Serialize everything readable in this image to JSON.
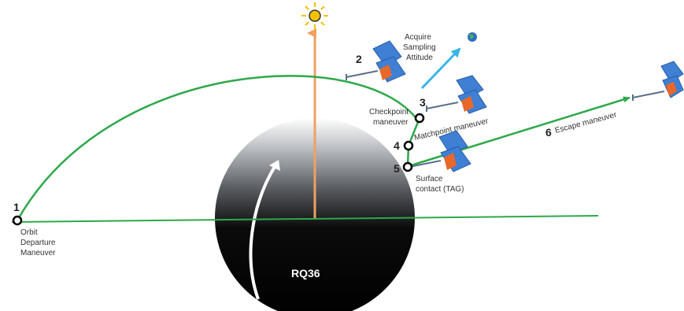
{
  "labels": {
    "body_name": "RQ36",
    "step1_num": "1",
    "step1_line1": "Orbit",
    "step1_line2": "Departure",
    "step1_line3": "Maneuver",
    "step2_num": "2",
    "acquire_line1": "Acquire",
    "acquire_line2": "Sampling",
    "acquire_line3": "Attitude",
    "step3_num": "3",
    "checkpoint_line1": "Checkpoint",
    "checkpoint_line2": "maneuver",
    "step4_num": "4",
    "matchpoint": "Matchpoint maneuver",
    "step5_num": "5",
    "surface_line1": "Surface",
    "surface_line2": "contact (TAG)",
    "step6_num": "6",
    "escape": "Escape maneuver"
  },
  "colors": {
    "trajectory": "#2ea84a",
    "sun_vector": "#f0a060",
    "sun": "#f2c200",
    "attitude_arrow": "#3ab4e6",
    "spacecraft_panel": "#3f7fd4",
    "spacecraft_body": "#e8682a",
    "asteroid_dark": "#050505",
    "asteroid_light": "#ffffff"
  },
  "icons": [
    "sun-icon",
    "earth-icon",
    "spacecraft-icon",
    "rotation-arrow-icon"
  ]
}
